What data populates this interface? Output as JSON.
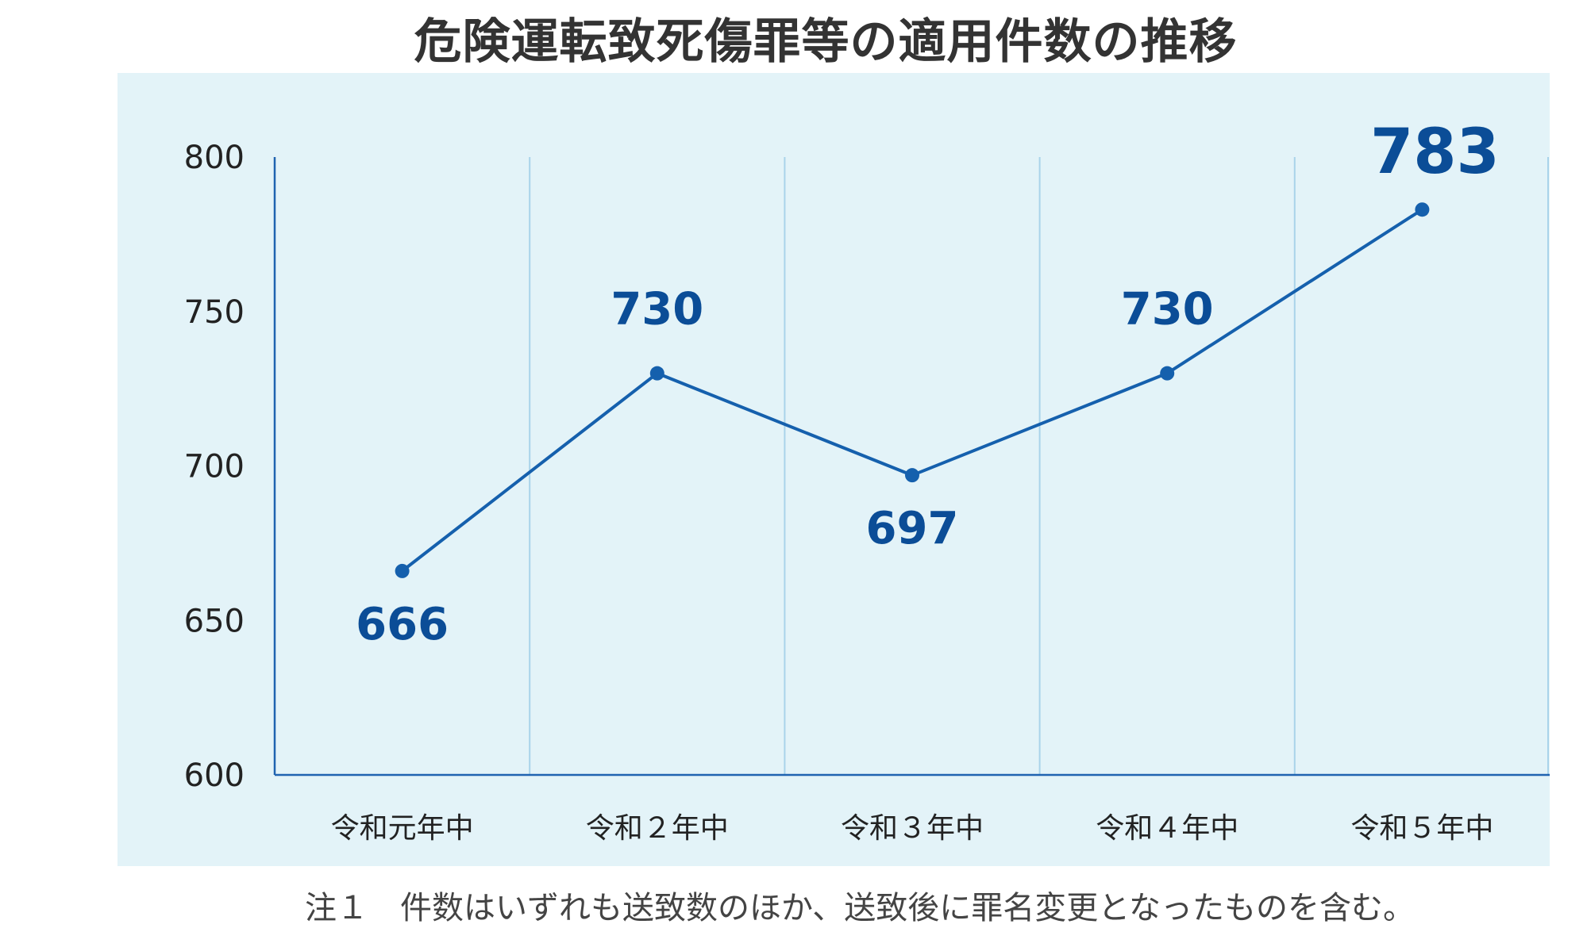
{
  "title": "危険運転致死傷罪等の適用件数の推移",
  "note": "注１　件数はいずれも送致数のほか、送致後に罪名変更となったものを含む。",
  "colors": {
    "panel_bg": "#e3f3f8",
    "axis": "#1f63b0",
    "gridline": "#a9d3ea",
    "line": "#1560ad",
    "label": "#0b4d97",
    "tick": "#222222"
  },
  "chart_data": {
    "type": "line",
    "title": "危険運転致死傷罪等の適用件数の推移",
    "categories": [
      "令和元年中",
      "令和２年中",
      "令和３年中",
      "令和４年中",
      "令和５年中"
    ],
    "series": [
      {
        "values": [
          666,
          730,
          697,
          730,
          783
        ]
      }
    ],
    "data_labels": [
      "666",
      "730",
      "697",
      "730",
      "783"
    ],
    "ylim": [
      600,
      800
    ],
    "yticks": [
      600,
      650,
      700,
      750,
      800
    ],
    "xlabel": "",
    "ylabel": "",
    "grid": true
  }
}
